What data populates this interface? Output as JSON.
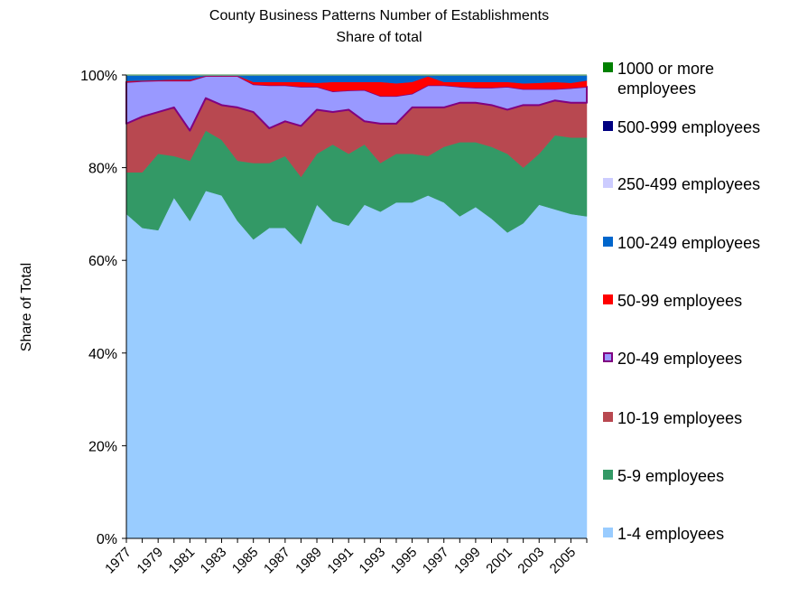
{
  "chart_data": {
    "type": "stacked-area",
    "title": "County Business Patterns Number of Establishments",
    "subtitle": "Share of total",
    "y_label": "Share of Total",
    "categories": [
      "1977",
      null,
      "1979",
      null,
      "1981",
      null,
      "1983",
      null,
      "1985",
      null,
      "1987",
      null,
      "1989",
      null,
      "1991",
      null,
      "1993",
      null,
      "1995",
      null,
      "1997",
      null,
      "1999",
      null,
      "2001",
      null,
      "2003",
      null,
      "2005",
      null
    ],
    "ylim": [
      0,
      100
    ],
    "yticks": [
      {
        "value": 0,
        "label": "0%"
      },
      {
        "value": 20,
        "label": "20%"
      },
      {
        "value": 40,
        "label": "40%"
      },
      {
        "value": 60,
        "label": "60%"
      },
      {
        "value": 80,
        "label": "80%"
      },
      {
        "value": 100,
        "label": "100%"
      }
    ],
    "grid": false,
    "legend": "right",
    "series": [
      {
        "name": "1-4 employees",
        "color": "#99ccff",
        "values": [
          70,
          67,
          66.5,
          73.5,
          68.5,
          75,
          74,
          68.5,
          64.5,
          67,
          67,
          63.5,
          72,
          68.5,
          67.5,
          72,
          70.5,
          72.5,
          72.5,
          74,
          72.5,
          69.5,
          71.5,
          69,
          66,
          68,
          72,
          71,
          70,
          69.5
        ]
      },
      {
        "name": "5-9 employees",
        "color": "#339966",
        "values": [
          9,
          12,
          16.5,
          9,
          13,
          13,
          12,
          13,
          16.5,
          14,
          15.5,
          14.5,
          11,
          16.5,
          15.5,
          13,
          10.5,
          10.5,
          10.5,
          8.5,
          12,
          16,
          14,
          15.5,
          17,
          12,
          11,
          16,
          16.5,
          17
        ]
      },
      {
        "name": "10-19 employees",
        "color": "#b84850",
        "values": [
          10.5,
          12,
          9,
          10.5,
          6.5,
          7,
          7.5,
          11.5,
          11,
          7.5,
          7.5,
          11,
          9.5,
          7,
          9.5,
          5,
          8.5,
          6.5,
          10,
          10.5,
          8.5,
          8.5,
          8.5,
          9,
          9.5,
          13.5,
          10.5,
          7.5,
          7.5,
          7.5
        ]
      },
      {
        "name": "20-49 employees",
        "color": "#9999ff",
        "stroke": "#800080",
        "values": [
          9,
          7.7,
          6.8,
          5.8,
          10.8,
          4.8,
          6.3,
          6.8,
          6,
          9.3,
          7.8,
          8.5,
          5,
          4.5,
          4.2,
          6.8,
          6,
          6,
          3,
          4.8,
          4.8,
          3.5,
          3.3,
          3.8,
          5,
          3.5,
          3.5,
          2.5,
          3.2,
          3.5
        ]
      },
      {
        "name": "50-99 employees",
        "color": "#ff0000",
        "values": [
          0.2,
          0.1,
          0.1,
          0.2,
          0.2,
          0.05,
          0.05,
          0.05,
          0.5,
          0.7,
          0.7,
          1,
          0.8,
          2,
          1.8,
          1.7,
          3,
          2.7,
          2.5,
          1.9,
          0.7,
          1,
          1.2,
          1.2,
          1,
          1.2,
          1.3,
          1.5,
          1.1,
          1.3
        ]
      },
      {
        "name": "100-249 employees",
        "color": "#0066cc",
        "values": [
          1.15,
          1.05,
          0.95,
          0.85,
          0.85,
          0,
          0,
          0,
          1.35,
          1.35,
          1.35,
          1.35,
          1.55,
          1.35,
          1.35,
          1.35,
          1.35,
          1.65,
          1.35,
          0.15,
          1.35,
          1.35,
          1.35,
          1.35,
          1.35,
          1.65,
          1.55,
          1.35,
          1.55,
          1.05
        ]
      },
      {
        "name": "250-499 employees",
        "color": "#ccccff",
        "values": [
          0.1,
          0.1,
          0.1,
          0.1,
          0.1,
          0.1,
          0.1,
          0.1,
          0.1,
          0.1,
          0.1,
          0.1,
          0.1,
          0.1,
          0.1,
          0.1,
          0.1,
          0.1,
          0.1,
          0.1,
          0.1,
          0.1,
          0.1,
          0.1,
          0.1,
          0.1,
          0.1,
          0.1,
          0.1,
          0.1
        ]
      },
      {
        "name": "500-999 employees",
        "color": "#000080",
        "values": [
          0.03,
          0.03,
          0.03,
          0.03,
          0.03,
          0.03,
          0.03,
          0.03,
          0.03,
          0.03,
          0.03,
          0.03,
          0.03,
          0.03,
          0.03,
          0.03,
          0.03,
          0.03,
          0.03,
          0.03,
          0.03,
          0.03,
          0.03,
          0.03,
          0.03,
          0.03,
          0.03,
          0.03,
          0.03,
          0.03
        ]
      },
      {
        "name": "1000 or more employees",
        "color": "#008000",
        "values": [
          0.02,
          0.02,
          0.02,
          0.02,
          0.02,
          0.02,
          0.02,
          0.02,
          0.02,
          0.02,
          0.02,
          0.02,
          0.02,
          0.02,
          0.02,
          0.02,
          0.02,
          0.02,
          0.02,
          0.02,
          0.02,
          0.02,
          0.02,
          0.02,
          0.02,
          0.02,
          0.02,
          0.02,
          0.02,
          0.02
        ]
      }
    ]
  }
}
